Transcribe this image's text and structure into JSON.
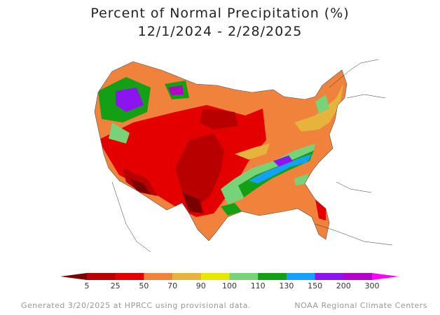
{
  "title": {
    "line1": "Percent of Normal Precipitation (%)",
    "line2": "12/1/2024 - 2/28/2025"
  },
  "legend": {
    "bins": [
      {
        "label": "5",
        "color": "#7a0000"
      },
      {
        "label": "25",
        "color": "#b80000"
      },
      {
        "label": "50",
        "color": "#e50000"
      },
      {
        "label": "70",
        "color": "#f0823c"
      },
      {
        "label": "90",
        "color": "#e6b43c"
      },
      {
        "label": "100",
        "color": "#e6e600"
      },
      {
        "label": "110",
        "color": "#78d278"
      },
      {
        "label": "130",
        "color": "#14a014"
      },
      {
        "label": "150",
        "color": "#14a0ff"
      },
      {
        "label": "200",
        "color": "#8c14f0"
      },
      {
        "label": "300",
        "color": "#b400c8"
      }
    ],
    "cap_color": "#ff00ff"
  },
  "footer": {
    "left": "Generated 3/20/2025 at HPRCC using provisional data.",
    "right": "NOAA Regional Climate Centers"
  }
}
